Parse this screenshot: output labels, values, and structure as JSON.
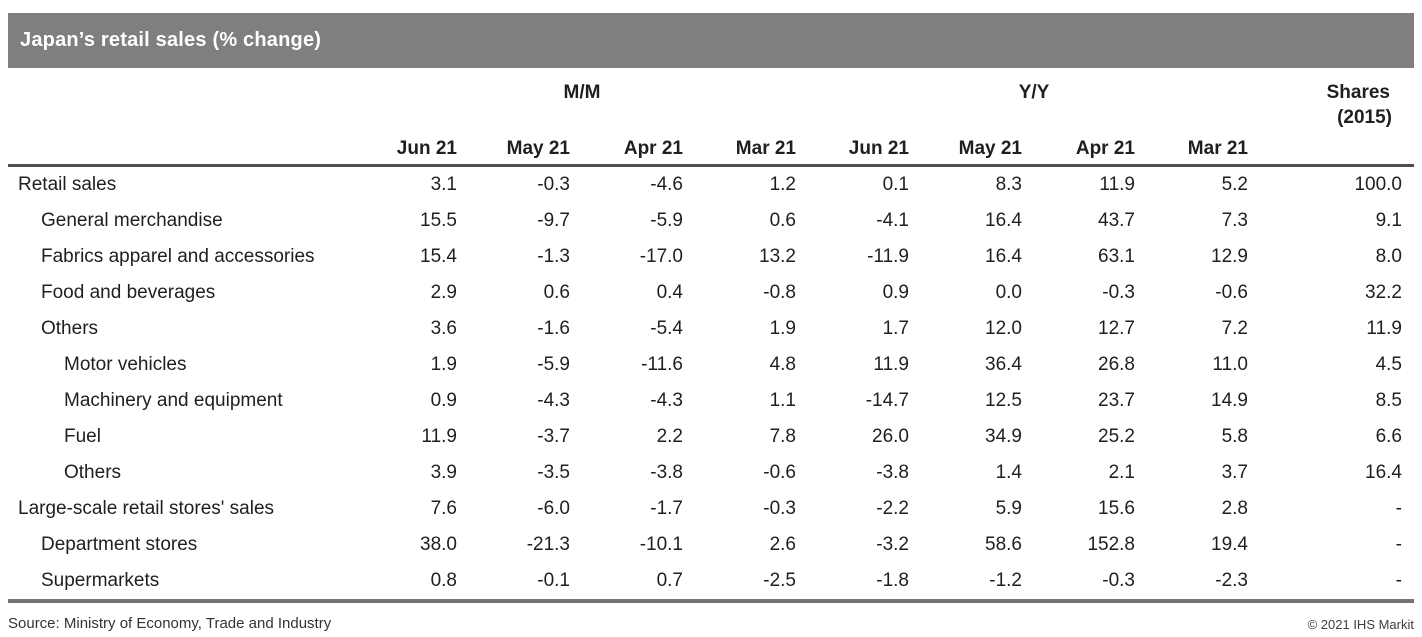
{
  "title_bar": {
    "title": "Japan’s retail sales (% change)"
  },
  "chart_data": {
    "type": "table",
    "title": "Japan’s retail sales (% change)",
    "column_groups": [
      {
        "label": "M/M",
        "span": 4
      },
      {
        "label": "Y/Y",
        "span": 4
      }
    ],
    "shares_header_line1": "Shares",
    "shares_header_line2": "(2015)",
    "columns": [
      "Jun 21",
      "May 21",
      "Apr 21",
      "Mar 21",
      "Jun 21",
      "May 21",
      "Apr 21",
      "Mar 21"
    ],
    "rows": [
      {
        "label": "Retail sales",
        "indent": 0,
        "values": [
          "3.1",
          "-0.3",
          "-4.6",
          "1.2",
          "0.1",
          "8.3",
          "11.9",
          "5.2",
          "100.0"
        ]
      },
      {
        "label": "General merchandise",
        "indent": 1,
        "values": [
          "15.5",
          "-9.7",
          "-5.9",
          "0.6",
          "-4.1",
          "16.4",
          "43.7",
          "7.3",
          "9.1"
        ]
      },
      {
        "label": "Fabrics apparel and accessories",
        "indent": 1,
        "values": [
          "15.4",
          "-1.3",
          "-17.0",
          "13.2",
          "-11.9",
          "16.4",
          "63.1",
          "12.9",
          "8.0"
        ]
      },
      {
        "label": "Food and beverages",
        "indent": 1,
        "values": [
          "2.9",
          "0.6",
          "0.4",
          "-0.8",
          "0.9",
          "0.0",
          "-0.3",
          "-0.6",
          "32.2"
        ]
      },
      {
        "label": "Others",
        "indent": 1,
        "values": [
          "3.6",
          "-1.6",
          "-5.4",
          "1.9",
          "1.7",
          "12.0",
          "12.7",
          "7.2",
          "11.9"
        ]
      },
      {
        "label": "Motor vehicles",
        "indent": 2,
        "values": [
          "1.9",
          "-5.9",
          "-11.6",
          "4.8",
          "11.9",
          "36.4",
          "26.8",
          "11.0",
          "4.5"
        ]
      },
      {
        "label": "Machinery and equipment",
        "indent": 2,
        "values": [
          "0.9",
          "-4.3",
          "-4.3",
          "1.1",
          "-14.7",
          "12.5",
          "23.7",
          "14.9",
          "8.5"
        ]
      },
      {
        "label": "Fuel",
        "indent": 2,
        "values": [
          "11.9",
          "-3.7",
          "2.2",
          "7.8",
          "26.0",
          "34.9",
          "25.2",
          "5.8",
          "6.6"
        ]
      },
      {
        "label": "Others",
        "indent": 2,
        "values": [
          "3.9",
          "-3.5",
          "-3.8",
          "-0.6",
          "-3.8",
          "1.4",
          "2.1",
          "3.7",
          "16.4"
        ]
      },
      {
        "label": "Large-scale retail stores' sales",
        "indent": 0,
        "values": [
          "7.6",
          "-6.0",
          "-1.7",
          "-0.3",
          "-2.2",
          "5.9",
          "15.6",
          "2.8",
          "-"
        ]
      },
      {
        "label": "Department stores",
        "indent": 1,
        "values": [
          "38.0",
          "-21.3",
          "-10.1",
          "2.6",
          "-3.2",
          "58.6",
          "152.8",
          "19.4",
          "-"
        ]
      },
      {
        "label": "Supermarkets",
        "indent": 1,
        "values": [
          "0.8",
          "-0.1",
          "0.7",
          "-2.5",
          "-1.8",
          "-1.2",
          "-0.3",
          "-2.3",
          "-"
        ]
      }
    ]
  },
  "footer": {
    "source": "Source: Ministry of Economy, Trade and Industry",
    "copyright": "© 2021 IHS Markit"
  },
  "colors": {
    "title_bar_bg": "#7f7f7f",
    "title_text": "#ffffff",
    "header_rule": "#4f4f4f",
    "bottom_rule": "#737373",
    "body_text": "#1f1f1f"
  }
}
